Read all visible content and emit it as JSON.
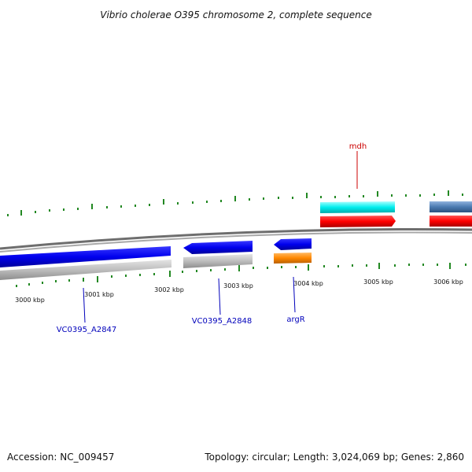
{
  "title": "Vibrio cholerae O395 chromosome 2, complete sequence",
  "footer": {
    "accession": "Accession: NC_009457",
    "summary": "Topology: circular; Length: 3,024,069 bp; Genes: 2,860"
  },
  "scale_labels": [
    "3000 kbp",
    "3001 kbp",
    "3002 kbp",
    "3003 kbp",
    "3004 kbp",
    "3005 kbp",
    "3006 kbp"
  ],
  "gene_labels": [
    {
      "text": "VC0395_A2847",
      "color": "#0000bb"
    },
    {
      "text": "VC0395_A2848",
      "color": "#0000bb"
    },
    {
      "text": "argR",
      "color": "#0000bb"
    },
    {
      "text": "mdh",
      "color": "#cc0000"
    }
  ],
  "colors": {
    "backbone": "#777777",
    "tick": "#228822",
    "gene_blue": "#0000ee",
    "gene_gray": "#bbbbbb",
    "gene_orange": "#ff8800",
    "gene_red": "#ff0000",
    "gene_cyan": "#00eeee",
    "gene_steelblue": "#4a7ab0"
  }
}
